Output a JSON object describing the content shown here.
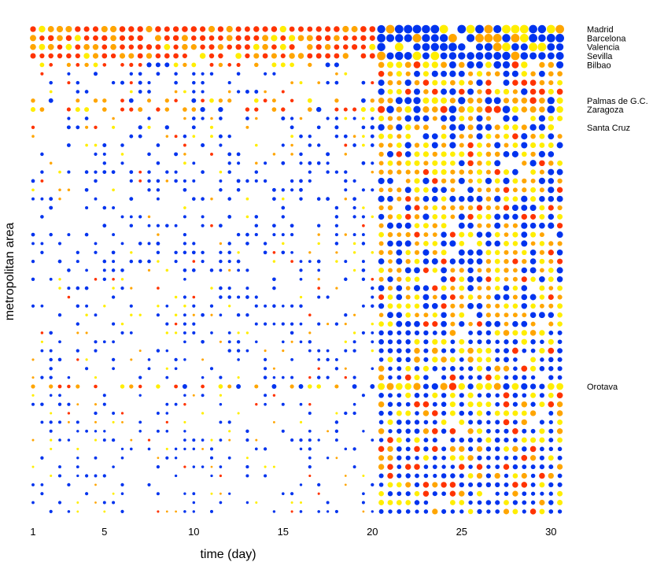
{
  "chart_data": {
    "type": "scatter",
    "title": "",
    "xlabel": "time (day)",
    "ylabel": "metropolitan area",
    "xlim": [
      1,
      30.5
    ],
    "x_ticks": [
      1,
      5,
      10,
      15,
      20,
      25,
      30
    ],
    "x_tick_labels": [
      "1",
      "5",
      "10",
      "15",
      "20",
      "25",
      "30"
    ],
    "x_step": 0.5,
    "num_areas": 55,
    "grid": false,
    "legend": "none",
    "labeled_areas": [
      {
        "name": "Madrid",
        "row": 0
      },
      {
        "name": "Barcelona",
        "row": 1
      },
      {
        "name": "Valencia",
        "row": 2
      },
      {
        "name": "Sevilla",
        "row": 3
      },
      {
        "name": "Bilbao",
        "row": 4
      },
      {
        "name": "Palmas de G.C.",
        "row": 8
      },
      {
        "name": "Zaragoza",
        "row": 9
      },
      {
        "name": "Santa Cruz",
        "row": 11
      },
      {
        "name": "Orotava",
        "row": 40
      }
    ],
    "color_scale": [
      "#ff3300",
      "#ffa500",
      "#ffee00",
      "#0033ee"
    ],
    "colors": {
      "red": "#ff3300",
      "orange": "#ffa500",
      "yellow": "#ffee00",
      "blue": "#0033ee"
    }
  }
}
